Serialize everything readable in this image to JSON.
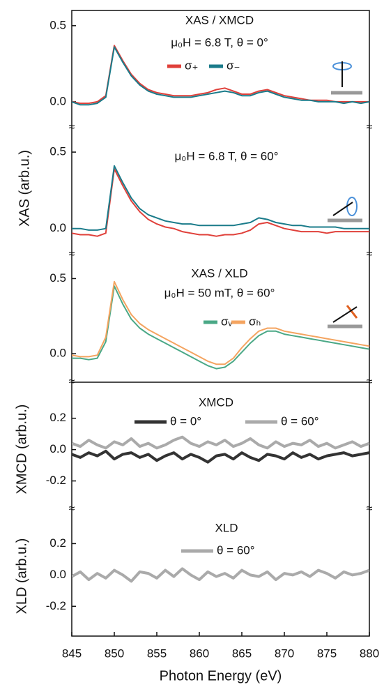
{
  "chart_data": [
    {
      "type": "line",
      "title": "XAS / XMCD",
      "subtitle": "μ₀H = 6.8 T, θ = 0°",
      "x": [
        845,
        846,
        847,
        848,
        849,
        850,
        851,
        852,
        853,
        854,
        855,
        856,
        857,
        858,
        859,
        860,
        861,
        862,
        863,
        864,
        865,
        866,
        867,
        868,
        869,
        870,
        871,
        872,
        873,
        874,
        875,
        876,
        877,
        878,
        879,
        880
      ],
      "series": [
        {
          "name": "σ₊",
          "color": "#e0403a",
          "values": [
            0.0,
            -0.01,
            -0.01,
            0.0,
            0.04,
            0.37,
            0.27,
            0.18,
            0.12,
            0.08,
            0.06,
            0.05,
            0.04,
            0.04,
            0.04,
            0.05,
            0.06,
            0.08,
            0.09,
            0.07,
            0.05,
            0.05,
            0.07,
            0.08,
            0.06,
            0.04,
            0.03,
            0.02,
            0.01,
            0.01,
            0.01,
            0.0,
            0.0,
            0.0,
            0.0,
            0.0
          ]
        },
        {
          "name": "σ₋",
          "color": "#1a7b8a",
          "values": [
            0.0,
            -0.02,
            -0.02,
            -0.01,
            0.03,
            0.36,
            0.26,
            0.17,
            0.11,
            0.07,
            0.05,
            0.04,
            0.03,
            0.03,
            0.03,
            0.04,
            0.05,
            0.06,
            0.07,
            0.06,
            0.04,
            0.04,
            0.06,
            0.07,
            0.05,
            0.03,
            0.02,
            0.01,
            0.01,
            0.0,
            0.0,
            0.0,
            -0.01,
            0.0,
            -0.01,
            0.0
          ]
        }
      ],
      "xlim": [
        845,
        880
      ],
      "ylim": [
        -0.17,
        0.6
      ],
      "yticks": [
        {
          "value": 0,
          "label": "0.0"
        },
        0.5
      ]
    },
    {
      "type": "line",
      "subtitle": "μ₀H = 6.8 T, θ = 60°",
      "ylabel": "XAS (arb.u.)",
      "x": [
        845,
        846,
        847,
        848,
        849,
        850,
        851,
        852,
        853,
        854,
        855,
        856,
        857,
        858,
        859,
        860,
        861,
        862,
        863,
        864,
        865,
        866,
        867,
        868,
        869,
        870,
        871,
        872,
        873,
        874,
        875,
        876,
        877,
        878,
        879,
        880
      ],
      "series": [
        {
          "name": "σ₊",
          "color": "#e0403a",
          "values": [
            -0.03,
            -0.04,
            -0.04,
            -0.05,
            -0.03,
            0.39,
            0.28,
            0.18,
            0.11,
            0.06,
            0.03,
            0.01,
            0.0,
            -0.02,
            -0.03,
            -0.04,
            -0.04,
            -0.05,
            -0.04,
            -0.04,
            -0.03,
            -0.01,
            0.03,
            0.04,
            0.02,
            0.0,
            -0.01,
            -0.02,
            -0.02,
            -0.02,
            -0.03,
            -0.02,
            -0.02,
            -0.02,
            -0.02,
            -0.02
          ]
        },
        {
          "name": "σ₋",
          "color": "#1a7b8a",
          "values": [
            0.0,
            0.0,
            -0.01,
            -0.01,
            0.0,
            0.41,
            0.3,
            0.2,
            0.13,
            0.09,
            0.07,
            0.05,
            0.04,
            0.03,
            0.03,
            0.02,
            0.02,
            0.02,
            0.02,
            0.02,
            0.03,
            0.04,
            0.07,
            0.06,
            0.04,
            0.03,
            0.02,
            0.02,
            0.01,
            0.01,
            0.01,
            0.01,
            0.0,
            0.0,
            0.0,
            0.0
          ]
        }
      ],
      "xlim": [
        845,
        880
      ],
      "ylim": [
        -0.17,
        0.66
      ],
      "yticks": [
        {
          "value": 0,
          "label": "0.0"
        },
        0.5
      ]
    },
    {
      "type": "line",
      "title": "XAS / XLD",
      "subtitle": "μ₀H = 50 mT, θ = 60°",
      "x": [
        845,
        846,
        847,
        848,
        849,
        850,
        851,
        852,
        853,
        854,
        855,
        856,
        857,
        858,
        859,
        860,
        861,
        862,
        863,
        864,
        865,
        866,
        867,
        868,
        869,
        870,
        871,
        872,
        873,
        874,
        875,
        876,
        877,
        878,
        879,
        880
      ],
      "series": [
        {
          "name": "σᵥ",
          "color": "#4aa886",
          "values": [
            -0.03,
            -0.03,
            -0.04,
            -0.03,
            0.08,
            0.45,
            0.33,
            0.23,
            0.17,
            0.13,
            0.1,
            0.07,
            0.04,
            0.01,
            -0.02,
            -0.05,
            -0.08,
            -0.1,
            -0.09,
            -0.05,
            0.01,
            0.07,
            0.12,
            0.15,
            0.15,
            0.13,
            0.12,
            0.11,
            0.1,
            0.09,
            0.08,
            0.07,
            0.06,
            0.05,
            0.04,
            0.03
          ]
        },
        {
          "name": "σₕ",
          "color": "#f4a460",
          "values": [
            -0.01,
            -0.02,
            -0.02,
            -0.01,
            0.11,
            0.48,
            0.36,
            0.26,
            0.2,
            0.16,
            0.13,
            0.1,
            0.07,
            0.04,
            0.01,
            -0.02,
            -0.05,
            -0.07,
            -0.07,
            -0.03,
            0.04,
            0.1,
            0.15,
            0.17,
            0.17,
            0.15,
            0.14,
            0.13,
            0.12,
            0.11,
            0.1,
            0.09,
            0.08,
            0.07,
            0.06,
            0.05
          ]
        }
      ],
      "xlim": [
        845,
        880
      ],
      "ylim": [
        -0.19,
        0.66
      ],
      "yticks": [
        {
          "value": 0,
          "label": "0.0"
        },
        0.5
      ]
    },
    {
      "type": "line",
      "title": "XMCD",
      "ylabel": "XMCD (arb.u.)",
      "x": [
        845,
        846,
        847,
        848,
        849,
        850,
        851,
        852,
        853,
        854,
        855,
        856,
        857,
        858,
        859,
        860,
        861,
        862,
        863,
        864,
        865,
        866,
        867,
        868,
        869,
        870,
        871,
        872,
        873,
        874,
        875,
        876,
        877,
        878,
        879,
        880
      ],
      "series": [
        {
          "name": "θ = 0°",
          "color": "#333333",
          "values": [
            -0.03,
            -0.05,
            -0.02,
            -0.04,
            -0.01,
            -0.06,
            -0.03,
            -0.02,
            -0.05,
            -0.03,
            -0.07,
            -0.04,
            -0.02,
            -0.06,
            -0.03,
            -0.05,
            -0.08,
            -0.04,
            -0.03,
            -0.06,
            -0.02,
            -0.05,
            -0.07,
            -0.03,
            -0.04,
            -0.06,
            -0.02,
            -0.05,
            -0.03,
            -0.06,
            -0.04,
            -0.03,
            -0.02,
            -0.04,
            -0.03,
            -0.02
          ]
        },
        {
          "name": "θ = 60°",
          "color": "#aaaaaa",
          "values": [
            0.04,
            0.02,
            0.06,
            0.03,
            0.01,
            0.05,
            0.03,
            0.07,
            0.02,
            0.04,
            0.01,
            0.03,
            0.06,
            0.08,
            0.04,
            0.02,
            0.05,
            0.03,
            0.06,
            0.02,
            0.04,
            0.07,
            0.03,
            0.01,
            0.05,
            0.02,
            0.04,
            0.03,
            0.06,
            0.02,
            0.04,
            0.01,
            0.03,
            0.05,
            0.02,
            0.04
          ]
        }
      ],
      "xlim": [
        845,
        880
      ],
      "ylim": [
        -0.38,
        0.43
      ],
      "yticks": [
        -0.2,
        {
          "value": 0,
          "label": "0.0"
        },
        0.2
      ]
    },
    {
      "type": "line",
      "title": "XLD",
      "ylabel": "XLD (arb.u.)",
      "xlabel": "Photon Energy (eV)",
      "x": [
        845,
        846,
        847,
        848,
        849,
        850,
        851,
        852,
        853,
        854,
        855,
        856,
        857,
        858,
        859,
        860,
        861,
        862,
        863,
        864,
        865,
        866,
        867,
        868,
        869,
        870,
        871,
        872,
        873,
        874,
        875,
        876,
        877,
        878,
        879,
        880
      ],
      "series": [
        {
          "name": "θ = 60°",
          "color": "#aaaaaa",
          "values": [
            -0.01,
            0.02,
            -0.03,
            0.01,
            -0.02,
            0.03,
            0.0,
            -0.04,
            0.02,
            0.01,
            -0.02,
            0.03,
            -0.01,
            0.04,
            0.0,
            -0.03,
            0.02,
            -0.01,
            0.01,
            -0.02,
            0.03,
            0.0,
            -0.01,
            0.02,
            -0.03,
            0.01,
            0.0,
            0.02,
            -0.01,
            0.03,
            0.01,
            -0.02,
            0.02,
            0.0,
            0.01,
            0.03
          ]
        }
      ],
      "xlim": [
        845,
        880
      ],
      "ylim": [
        -0.39,
        0.42
      ],
      "yticks": [
        -0.2,
        {
          "value": 0,
          "label": "0.0"
        },
        0.2
      ],
      "xticks": [
        845,
        850,
        855,
        860,
        865,
        870,
        875,
        880
      ]
    }
  ]
}
